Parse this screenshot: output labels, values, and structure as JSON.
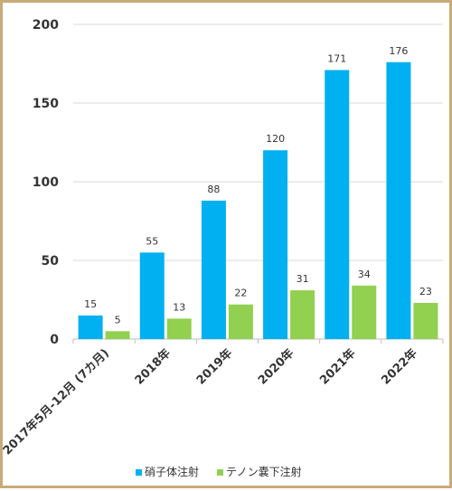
{
  "chart_data": {
    "type": "bar",
    "categories": [
      "2017年5月-12月 (7カ月)",
      "2018年",
      "2019年",
      "2020年",
      "2021年",
      "2022年"
    ],
    "series": [
      {
        "name": "硝子体注射",
        "values": [
          15,
          55,
          88,
          120,
          171,
          176
        ],
        "color": "#00b0f0"
      },
      {
        "name": "テノン嚢下注射",
        "values": [
          5,
          13,
          22,
          31,
          34,
          23
        ],
        "color": "#92d050"
      }
    ],
    "yticks": [
      "0",
      "50",
      "100",
      "150",
      "200"
    ],
    "ylim": [
      0,
      200
    ],
    "grid": true,
    "legend": "bottom"
  }
}
